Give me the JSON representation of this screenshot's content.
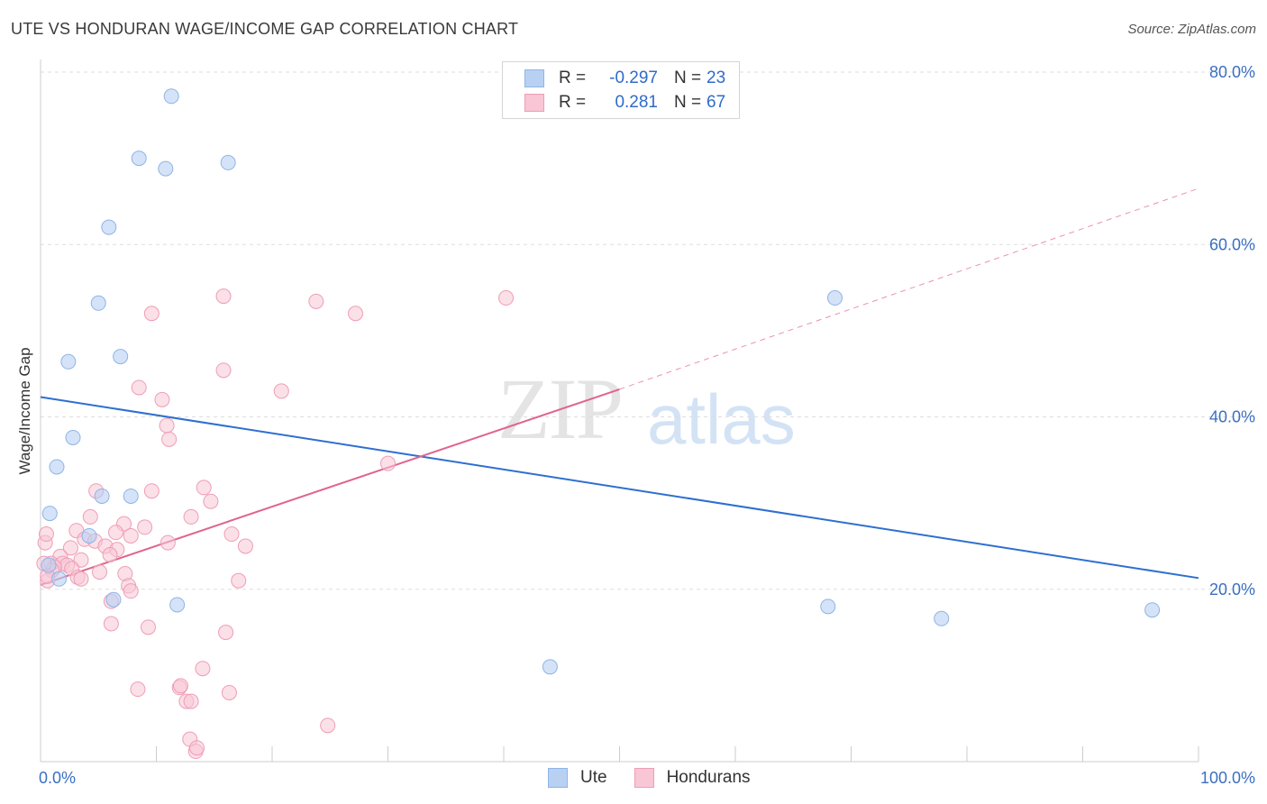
{
  "title": "UTE VS HONDURAN WAGE/INCOME GAP CORRELATION CHART",
  "source": "Source: ZipAtlas.com",
  "watermark": {
    "zip": "ZIP",
    "atlas": "atlas"
  },
  "legend": {
    "rows": [
      {
        "r_label": "R =",
        "r_value": "-0.297",
        "n_label": "N =",
        "n_value": "23"
      },
      {
        "r_label": "R =",
        "r_value": "0.281",
        "n_label": "N =",
        "n_value": "67"
      }
    ]
  },
  "bottom_legend": [
    "Ute",
    "Hondurans"
  ],
  "colors": {
    "ute_fill": "#b8d1f3",
    "ute_stroke": "#8fb4e6",
    "ute_line": "#2e6fd0",
    "hond_fill": "#f8c6d5",
    "hond_stroke": "#ee9db6",
    "hond_line": "#e0648e",
    "grid": "#dddddd",
    "axis_text": "#3a6fc2"
  },
  "chart_data": {
    "type": "scatter",
    "title": "UTE VS HONDURAN WAGE/INCOME GAP CORRELATION CHART",
    "xlabel": "",
    "ylabel": "Wage/Income Gap",
    "xlim": [
      0,
      100
    ],
    "ylim": [
      0,
      80
    ],
    "x_ticks_labels": [
      "0.0%",
      "100.0%"
    ],
    "y_ticks": [
      20,
      40,
      60,
      80
    ],
    "y_tick_labels": [
      "20.0%",
      "40.0%",
      "60.0%",
      "80.0%"
    ],
    "grid": true,
    "legend_position": "top-center",
    "series": [
      {
        "name": "Ute",
        "points": [
          [
            11.3,
            77.2
          ],
          [
            8.5,
            70.0
          ],
          [
            10.8,
            68.8
          ],
          [
            16.2,
            69.5
          ],
          [
            5.9,
            62.0
          ],
          [
            5.0,
            53.2
          ],
          [
            68.6,
            53.8
          ],
          [
            2.4,
            46.4
          ],
          [
            6.9,
            47.0
          ],
          [
            2.8,
            37.6
          ],
          [
            1.4,
            34.2
          ],
          [
            7.8,
            30.8
          ],
          [
            5.3,
            30.8
          ],
          [
            0.8,
            28.8
          ],
          [
            4.2,
            26.2
          ],
          [
            1.6,
            21.2
          ],
          [
            0.7,
            22.8
          ],
          [
            6.3,
            18.8
          ],
          [
            11.8,
            18.2
          ],
          [
            68.0,
            18.0
          ],
          [
            77.8,
            16.6
          ],
          [
            96.0,
            17.6
          ],
          [
            44.0,
            11.0
          ]
        ],
        "trend": {
          "x": [
            0,
            100
          ],
          "y": [
            42.3,
            21.3
          ]
        }
      },
      {
        "name": "Hondurans",
        "points": [
          [
            15.8,
            54.0
          ],
          [
            23.8,
            53.4
          ],
          [
            27.2,
            52.0
          ],
          [
            40.2,
            53.8
          ],
          [
            9.6,
            52.0
          ],
          [
            15.8,
            45.4
          ],
          [
            8.5,
            43.4
          ],
          [
            10.5,
            42.0
          ],
          [
            20.8,
            43.0
          ],
          [
            10.9,
            39.0
          ],
          [
            11.1,
            37.4
          ],
          [
            30.0,
            34.6
          ],
          [
            14.1,
            31.8
          ],
          [
            9.6,
            31.4
          ],
          [
            4.8,
            31.4
          ],
          [
            14.7,
            30.2
          ],
          [
            13.0,
            28.4
          ],
          [
            4.3,
            28.4
          ],
          [
            7.2,
            27.6
          ],
          [
            9.0,
            27.2
          ],
          [
            3.1,
            26.8
          ],
          [
            6.5,
            26.6
          ],
          [
            16.5,
            26.4
          ],
          [
            7.8,
            26.2
          ],
          [
            3.8,
            25.8
          ],
          [
            4.7,
            25.6
          ],
          [
            11.0,
            25.4
          ],
          [
            0.4,
            25.4
          ],
          [
            5.6,
            25.0
          ],
          [
            17.7,
            25.0
          ],
          [
            2.6,
            24.8
          ],
          [
            6.6,
            24.6
          ],
          [
            6.0,
            24.0
          ],
          [
            1.7,
            23.8
          ],
          [
            3.5,
            23.4
          ],
          [
            0.9,
            23.0
          ],
          [
            1.9,
            23.0
          ],
          [
            2.3,
            22.8
          ],
          [
            1.2,
            22.6
          ],
          [
            2.7,
            22.4
          ],
          [
            1.0,
            22.2
          ],
          [
            5.1,
            22.0
          ],
          [
            7.3,
            21.8
          ],
          [
            3.2,
            21.4
          ],
          [
            3.5,
            21.2
          ],
          [
            17.1,
            21.0
          ],
          [
            0.6,
            21.0
          ],
          [
            7.6,
            20.4
          ],
          [
            7.8,
            19.8
          ],
          [
            6.1,
            18.6
          ],
          [
            6.1,
            16.0
          ],
          [
            9.3,
            15.6
          ],
          [
            16.0,
            15.0
          ],
          [
            14.0,
            10.8
          ],
          [
            12.0,
            8.6
          ],
          [
            8.4,
            8.4
          ],
          [
            12.1,
            8.8
          ],
          [
            16.3,
            8.0
          ],
          [
            12.6,
            7.0
          ],
          [
            13.0,
            7.0
          ],
          [
            24.8,
            4.2
          ],
          [
            12.9,
            2.6
          ],
          [
            13.4,
            1.2
          ],
          [
            13.5,
            1.6
          ],
          [
            0.5,
            26.4
          ],
          [
            0.3,
            23.0
          ],
          [
            0.6,
            21.5
          ]
        ],
        "trend": {
          "x": [
            0,
            50
          ],
          "y": [
            20.5,
            43.2
          ]
        },
        "trend_extension": {
          "x": [
            50,
            100
          ],
          "y": [
            43.2,
            66.5
          ]
        }
      }
    ]
  }
}
